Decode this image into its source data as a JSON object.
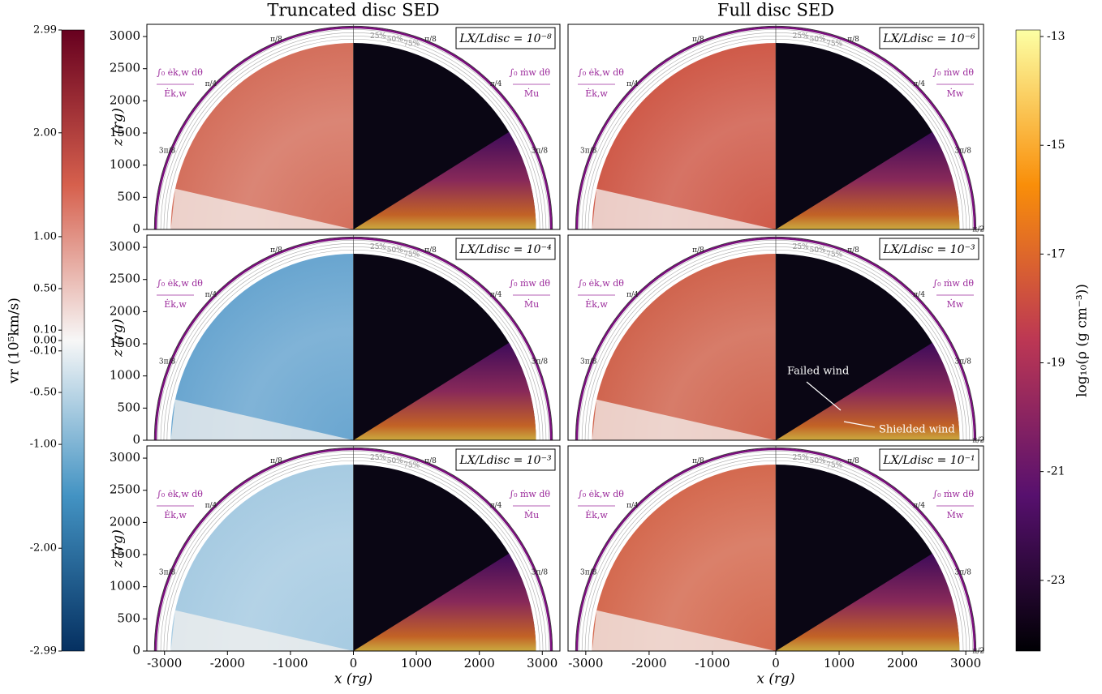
{
  "chart_data": [
    {
      "type": "map",
      "column_title": "Truncated disc SED",
      "label": "LX/Ldisc = 10⁻⁸",
      "color": "#d4705d",
      "xlim": [
        -3280,
        3280
      ],
      "ylim": [
        0,
        3190
      ],
      "yticks": [
        0,
        500,
        1000,
        1500,
        2000,
        2500,
        3000
      ],
      "ylabel": "z (rg)",
      "angle_labels": [
        "π/8",
        "π/4",
        "3π/8"
      ],
      "percent_labels": [
        "25%",
        "50%",
        "75%"
      ],
      "left_annotation": [
        "∫₀ ėk,w dθ",
        "Ėk,w"
      ],
      "right_annotation": [
        "∫₀ ṁw dθ",
        "Ṁu"
      ]
    },
    {
      "type": "map",
      "column_title": "Full disc SED",
      "label": "LX/Ldisc = 10⁻⁶",
      "color": "#cf5b4a",
      "xlim": [
        -3280,
        3280
      ],
      "ylim": [
        0,
        3190
      ],
      "angle_labels": [
        "π/8",
        "π/4",
        "3π/8",
        "π/2"
      ],
      "percent_labels": [
        "25%",
        "50%",
        "75%"
      ],
      "left_annotation": [
        "∫₀ ėk,w dθ",
        "Ėk,w"
      ],
      "right_annotation": [
        "∫₀ ṁw dθ",
        "Ṁw"
      ]
    },
    {
      "type": "map",
      "label": "LX/Ldisc = 10⁻⁴",
      "color": "#6aa6d0",
      "xlim": [
        -3280,
        3280
      ],
      "ylim": [
        0,
        3190
      ],
      "yticks": [
        0,
        500,
        1000,
        1500,
        2000,
        2500,
        3000
      ],
      "ylabel": "z (rg)",
      "angle_labels": [
        "π/8",
        "π/4",
        "3π/8"
      ],
      "percent_labels": [
        "25%",
        "50%",
        "75%"
      ],
      "left_annotation": [
        "∫₀ ėk,w dθ",
        "Ėk,w"
      ],
      "right_annotation": [
        "∫₀ ṁw dθ",
        "Ṁu"
      ]
    },
    {
      "type": "map",
      "label": "LX/Ldisc = 10⁻³",
      "color": "#d0654f",
      "xlim": [
        -3280,
        3280
      ],
      "ylim": [
        0,
        3190
      ],
      "angle_labels": [
        "π/8",
        "π/4",
        "3π/8",
        "π/2"
      ],
      "percent_labels": [
        "25%",
        "50%",
        "75%"
      ],
      "left_annotation": [
        "∫₀ ėk,w dθ",
        "Ėk,w"
      ],
      "right_annotation": [
        "∫₀ ṁw dθ",
        "Ṁw"
      ],
      "annotations": [
        "Failed wind",
        "Shielded wind"
      ]
    },
    {
      "type": "map",
      "label": "LX/Ldisc = 10⁻³",
      "color": "#a7cbe2",
      "xlim": [
        -3280,
        3280
      ],
      "ylim": [
        0,
        3190
      ],
      "yticks": [
        0,
        500,
        1000,
        1500,
        2000,
        2500,
        3000
      ],
      "ylabel": "z (rg)",
      "xticks": [
        -3000,
        -2000,
        -1000,
        0,
        1000,
        2000,
        3000
      ],
      "xlabel": "x (rg)",
      "angle_labels": [
        "π/8",
        "π/4",
        "3π/8"
      ],
      "percent_labels": [
        "25%",
        "50%",
        "75%"
      ],
      "left_annotation": [
        "∫₀ ėk,w dθ",
        "Ėk,w"
      ],
      "right_annotation": [
        "∫₀ ṁw dθ",
        "Ṁu"
      ]
    },
    {
      "type": "map",
      "label": "LX/Ldisc = 10⁻¹",
      "color": "#d46a50",
      "xlim": [
        -3280,
        3280
      ],
      "ylim": [
        0,
        3190
      ],
      "xticks": [
        -3000,
        -2000,
        -1000,
        0,
        1000,
        2000,
        3000
      ],
      "xlabel": "x (rg)",
      "angle_labels": [
        "π/8",
        "π/4",
        "3π/8",
        "π/2"
      ],
      "percent_labels": [
        "25%",
        "50%",
        "75%"
      ],
      "left_annotation": [
        "∫₀ ėk,w dθ",
        "Ėk,w"
      ],
      "right_annotation": [
        "∫₀ ṁw dθ",
        "Ṁw"
      ]
    },
    {
      "type": "colorbar",
      "label": "vr (10⁵km/s)",
      "ylim": [
        -2.99,
        2.99
      ],
      "colors": [
        "#053061",
        "#4393c3",
        "#f7f7f7",
        "#d6604d",
        "#67001f"
      ],
      "yticks": [
        {
          "value": 2.99,
          "label": "2.99"
        },
        {
          "value": 2,
          "label": "2.00"
        },
        {
          "value": 1,
          "label": "1.00"
        },
        {
          "value": 0.5,
          "label": "0.50"
        },
        {
          "value": 0.1,
          "label": "0.10"
        },
        {
          "value": 0,
          "label": "0.00"
        },
        {
          "value": -0.1,
          "label": "-0.10"
        },
        {
          "value": -0.5,
          "label": "-0.50"
        },
        {
          "value": -1,
          "label": "-1.00"
        },
        {
          "value": -2,
          "label": "-2.00"
        },
        {
          "value": -2.99,
          "label": "-2.99"
        }
      ]
    },
    {
      "type": "colorbar",
      "label": "log₁₀(ρ (g cm⁻³))",
      "ylim": [
        -24.3,
        -12.88
      ],
      "colors": [
        "#000004",
        "#57106e",
        "#bc3754",
        "#f98e09",
        "#fcffa4"
      ],
      "yticks": [
        -13,
        -15,
        -17,
        -19,
        -21,
        -23
      ]
    }
  ]
}
